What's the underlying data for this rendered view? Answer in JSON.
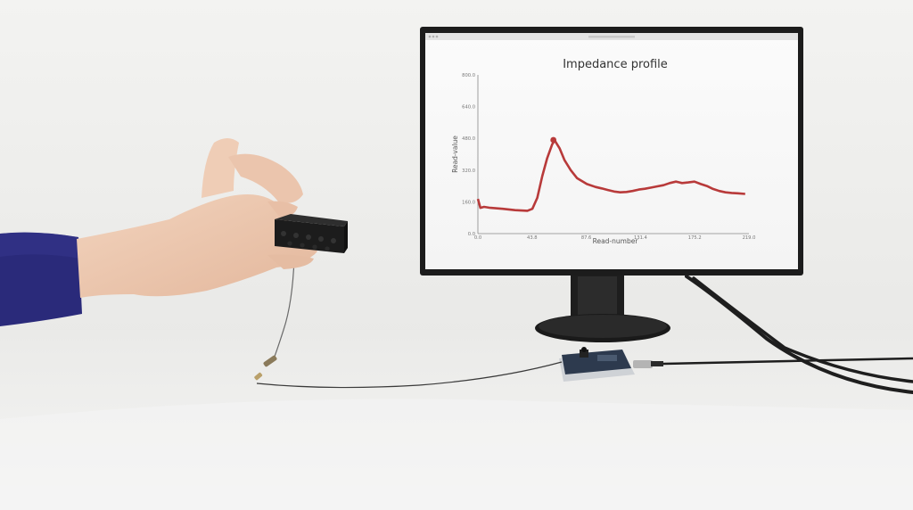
{
  "colors": {
    "wall": "#f1f1ef",
    "table": "#e8e8e6",
    "line": "#b83a3a",
    "sleeve": "#2a2a7a",
    "monitor_bezel": "#1c1c1c"
  },
  "chart_data": {
    "type": "line",
    "title": "Impedance profile",
    "xlabel": "Read-number",
    "ylabel": "Read-value",
    "xlim": [
      0,
      219
    ],
    "ylim": [
      0,
      800
    ],
    "x_ticks": [
      "0.0",
      "43.8",
      "87.6",
      "131.4",
      "175.2",
      "219.0"
    ],
    "y_ticks": [
      "0.0",
      "160.0",
      "320.0",
      "480.0",
      "640.0",
      "800.0"
    ],
    "grid": false,
    "series": [
      {
        "x": [
          0,
          2,
          5,
          10,
          20,
          30,
          40,
          44,
          48,
          52,
          56,
          60,
          62,
          66,
          70,
          75,
          80,
          88,
          95,
          100,
          105,
          110,
          115,
          120,
          125,
          130,
          135,
          140,
          145,
          150,
          155,
          160,
          165,
          170,
          175,
          180,
          185,
          190,
          195,
          200,
          205,
          210,
          216
        ],
        "y": [
          175,
          130,
          135,
          130,
          125,
          118,
          115,
          125,
          180,
          290,
          380,
          450,
          470,
          430,
          370,
          320,
          280,
          250,
          235,
          228,
          220,
          212,
          208,
          210,
          215,
          222,
          226,
          232,
          238,
          244,
          255,
          262,
          255,
          258,
          262,
          250,
          240,
          225,
          215,
          208,
          205,
          203,
          200
        ]
      }
    ],
    "marker": {
      "x": 61,
      "y": 472
    }
  }
}
